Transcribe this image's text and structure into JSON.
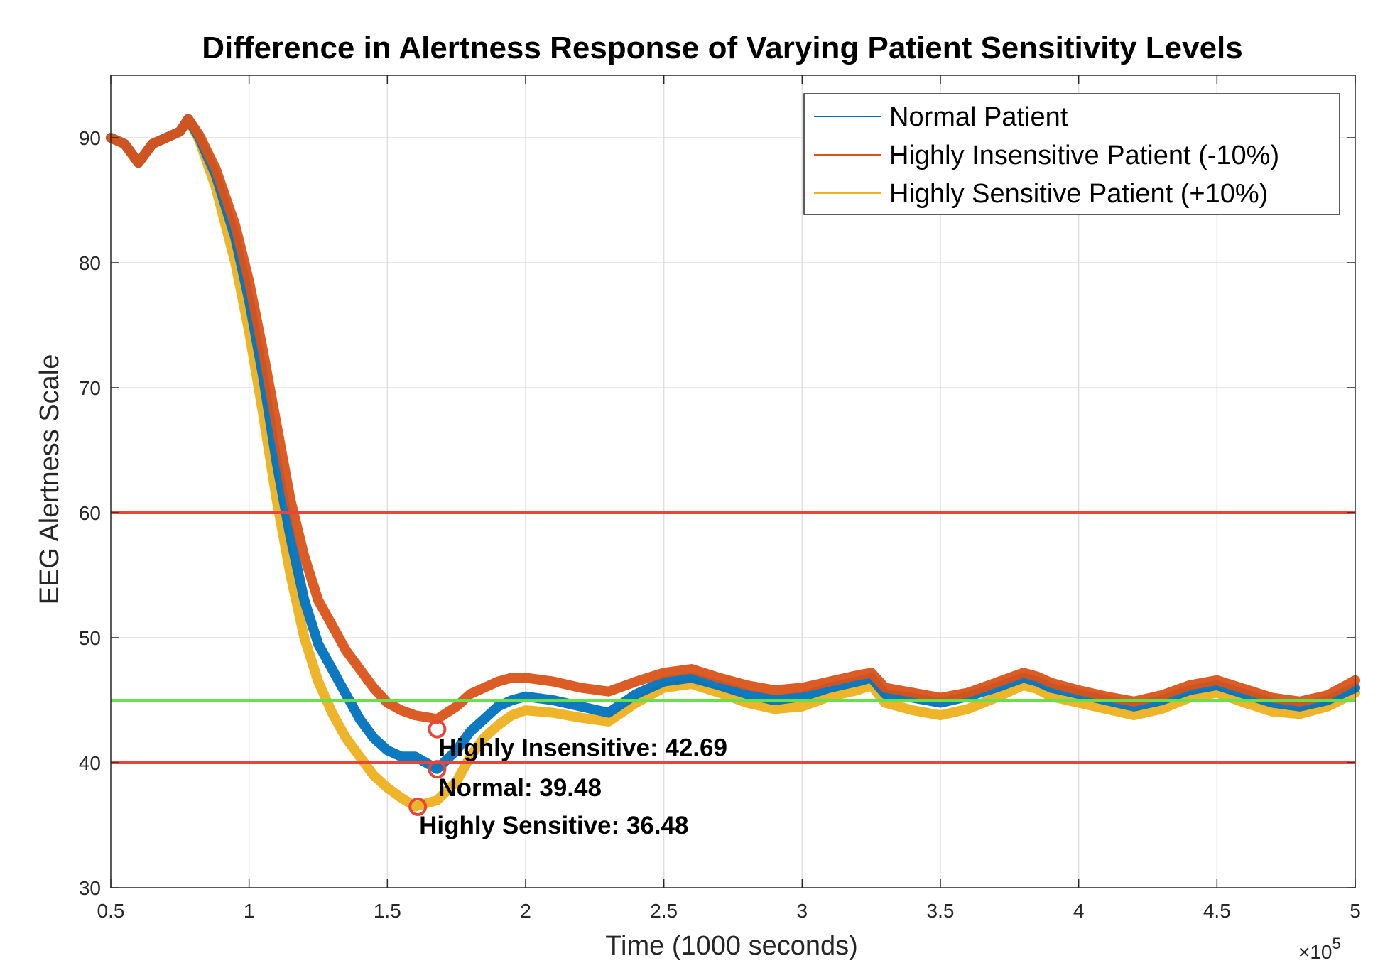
{
  "chart_data": {
    "type": "line",
    "title": "Difference in Alertness Response of Varying Patient Sensitivity Levels",
    "xlabel": "Time (1000 seconds)",
    "ylabel": "EEG Alertness Scale",
    "x_multiplier_label": "×10",
    "x_multiplier_exp": "5",
    "xlim": [
      0.5,
      5
    ],
    "ylim": [
      30,
      95
    ],
    "xticks": [
      0.5,
      1,
      1.5,
      2,
      2.5,
      3,
      3.5,
      4,
      4.5,
      5
    ],
    "xtick_labels": [
      "0.5",
      "1",
      "1.5",
      "2",
      "2.5",
      "3",
      "3.5",
      "4",
      "4.5",
      "5"
    ],
    "yticks": [
      30,
      40,
      50,
      60,
      70,
      80,
      90
    ],
    "ytick_labels": [
      "30",
      "40",
      "50",
      "60",
      "70",
      "80",
      "90"
    ],
    "grid": true,
    "legend_position": "top-right",
    "series": [
      {
        "name": "Normal Patient",
        "color": "#0072BD",
        "x": [
          0.5,
          0.55,
          0.6,
          0.65,
          0.7,
          0.75,
          0.78,
          0.82,
          0.88,
          0.95,
          1.0,
          1.05,
          1.1,
          1.15,
          1.2,
          1.25,
          1.3,
          1.35,
          1.4,
          1.45,
          1.5,
          1.55,
          1.6,
          1.68,
          1.75,
          1.8,
          1.85,
          1.9,
          1.95,
          2.0,
          2.1,
          2.2,
          2.3,
          2.4,
          2.5,
          2.6,
          2.7,
          2.8,
          2.9,
          3.0,
          3.1,
          3.2,
          3.25,
          3.3,
          3.4,
          3.5,
          3.6,
          3.7,
          3.8,
          3.85,
          3.9,
          4.0,
          4.1,
          4.2,
          4.3,
          4.4,
          4.5,
          4.6,
          4.7,
          4.8,
          4.9,
          5.0
        ],
        "y": [
          90,
          89.5,
          88,
          89.5,
          90,
          90.5,
          91.5,
          90,
          87,
          82,
          77,
          71,
          64,
          58,
          53,
          49.5,
          47.5,
          45.5,
          43.5,
          42,
          41,
          40.5,
          40.5,
          39.5,
          41,
          42.5,
          43.5,
          44.5,
          45,
          45.3,
          45,
          44.5,
          44,
          45.5,
          46.5,
          46.8,
          46.2,
          45.5,
          45,
          45.3,
          46,
          46.5,
          46.8,
          45.5,
          45.2,
          44.8,
          45.3,
          46,
          46.8,
          46.5,
          46,
          45.5,
          45,
          44.5,
          45,
          45.8,
          46.2,
          45.5,
          44.8,
          44.5,
          45,
          46
        ]
      },
      {
        "name": "Highly Insensitive Patient (-10%)",
        "color": "#D95319",
        "x": [
          0.5,
          0.55,
          0.6,
          0.65,
          0.7,
          0.75,
          0.78,
          0.82,
          0.88,
          0.95,
          1.0,
          1.05,
          1.1,
          1.15,
          1.2,
          1.25,
          1.3,
          1.35,
          1.4,
          1.45,
          1.5,
          1.55,
          1.6,
          1.68,
          1.75,
          1.8,
          1.85,
          1.9,
          1.95,
          2.0,
          2.1,
          2.2,
          2.3,
          2.4,
          2.5,
          2.6,
          2.7,
          2.8,
          2.9,
          3.0,
          3.1,
          3.2,
          3.25,
          3.3,
          3.4,
          3.5,
          3.6,
          3.7,
          3.8,
          3.85,
          3.9,
          4.0,
          4.1,
          4.2,
          4.3,
          4.4,
          4.5,
          4.6,
          4.7,
          4.8,
          4.9,
          5.0
        ],
        "y": [
          90,
          89.5,
          88,
          89.5,
          90,
          90.5,
          91.5,
          90.2,
          87.5,
          83,
          78.5,
          73,
          67,
          61,
          56.5,
          53,
          51,
          49,
          47.5,
          46,
          44.8,
          44.2,
          43.8,
          43.5,
          44.5,
          45.5,
          46,
          46.5,
          46.8,
          46.8,
          46.5,
          46,
          45.7,
          46.5,
          47.2,
          47.5,
          46.8,
          46.2,
          45.8,
          46,
          46.5,
          47,
          47.2,
          46,
          45.6,
          45.2,
          45.6,
          46.4,
          47.2,
          46.9,
          46.4,
          45.8,
          45.3,
          44.9,
          45.4,
          46.2,
          46.6,
          45.9,
          45.2,
          44.9,
          45.4,
          46.6
        ]
      },
      {
        "name": "Highly Sensitive Patient (+10%)",
        "color": "#EDB120",
        "x": [
          0.5,
          0.55,
          0.6,
          0.65,
          0.7,
          0.75,
          0.78,
          0.82,
          0.88,
          0.95,
          1.0,
          1.05,
          1.1,
          1.15,
          1.2,
          1.25,
          1.3,
          1.35,
          1.4,
          1.45,
          1.5,
          1.55,
          1.6,
          1.68,
          1.75,
          1.8,
          1.85,
          1.9,
          1.95,
          2.0,
          2.1,
          2.2,
          2.3,
          2.4,
          2.5,
          2.6,
          2.7,
          2.8,
          2.9,
          3.0,
          3.1,
          3.2,
          3.25,
          3.3,
          3.4,
          3.5,
          3.6,
          3.7,
          3.8,
          3.85,
          3.9,
          4.0,
          4.1,
          4.2,
          4.3,
          4.4,
          4.5,
          4.6,
          4.7,
          4.8,
          4.9,
          5.0
        ],
        "y": [
          90,
          89.5,
          88,
          89.5,
          90,
          90.5,
          91.5,
          89.8,
          86,
          80,
          74.5,
          68,
          61,
          55,
          50,
          46.5,
          44,
          42,
          40.5,
          39,
          38,
          37.2,
          36.5,
          37,
          38.5,
          40.5,
          42,
          43,
          43.8,
          44.2,
          44,
          43.6,
          43.3,
          44.8,
          46,
          46.3,
          45.6,
          44.8,
          44.3,
          44.5,
          45.3,
          45.8,
          46.2,
          44.8,
          44.2,
          43.8,
          44.3,
          45.2,
          46.2,
          45.9,
          45.3,
          44.8,
          44.3,
          43.8,
          44.3,
          45.2,
          45.6,
          44.8,
          44.1,
          43.9,
          44.5,
          45.6
        ]
      }
    ],
    "reference_lines": [
      {
        "y": 60,
        "color": "#E8453C"
      },
      {
        "y": 40,
        "color": "#E8453C"
      },
      {
        "y": 45,
        "color": "#66E04D"
      }
    ],
    "annotations": [
      {
        "x": 1.68,
        "y": 42.69,
        "text": "Highly Insensitive: 42.69"
      },
      {
        "x": 1.68,
        "y": 39.48,
        "text": "Normal: 39.48"
      },
      {
        "x": 1.61,
        "y": 36.48,
        "text": "Highly Sensitive: 36.48"
      }
    ],
    "marker_color": "#E8453C"
  }
}
